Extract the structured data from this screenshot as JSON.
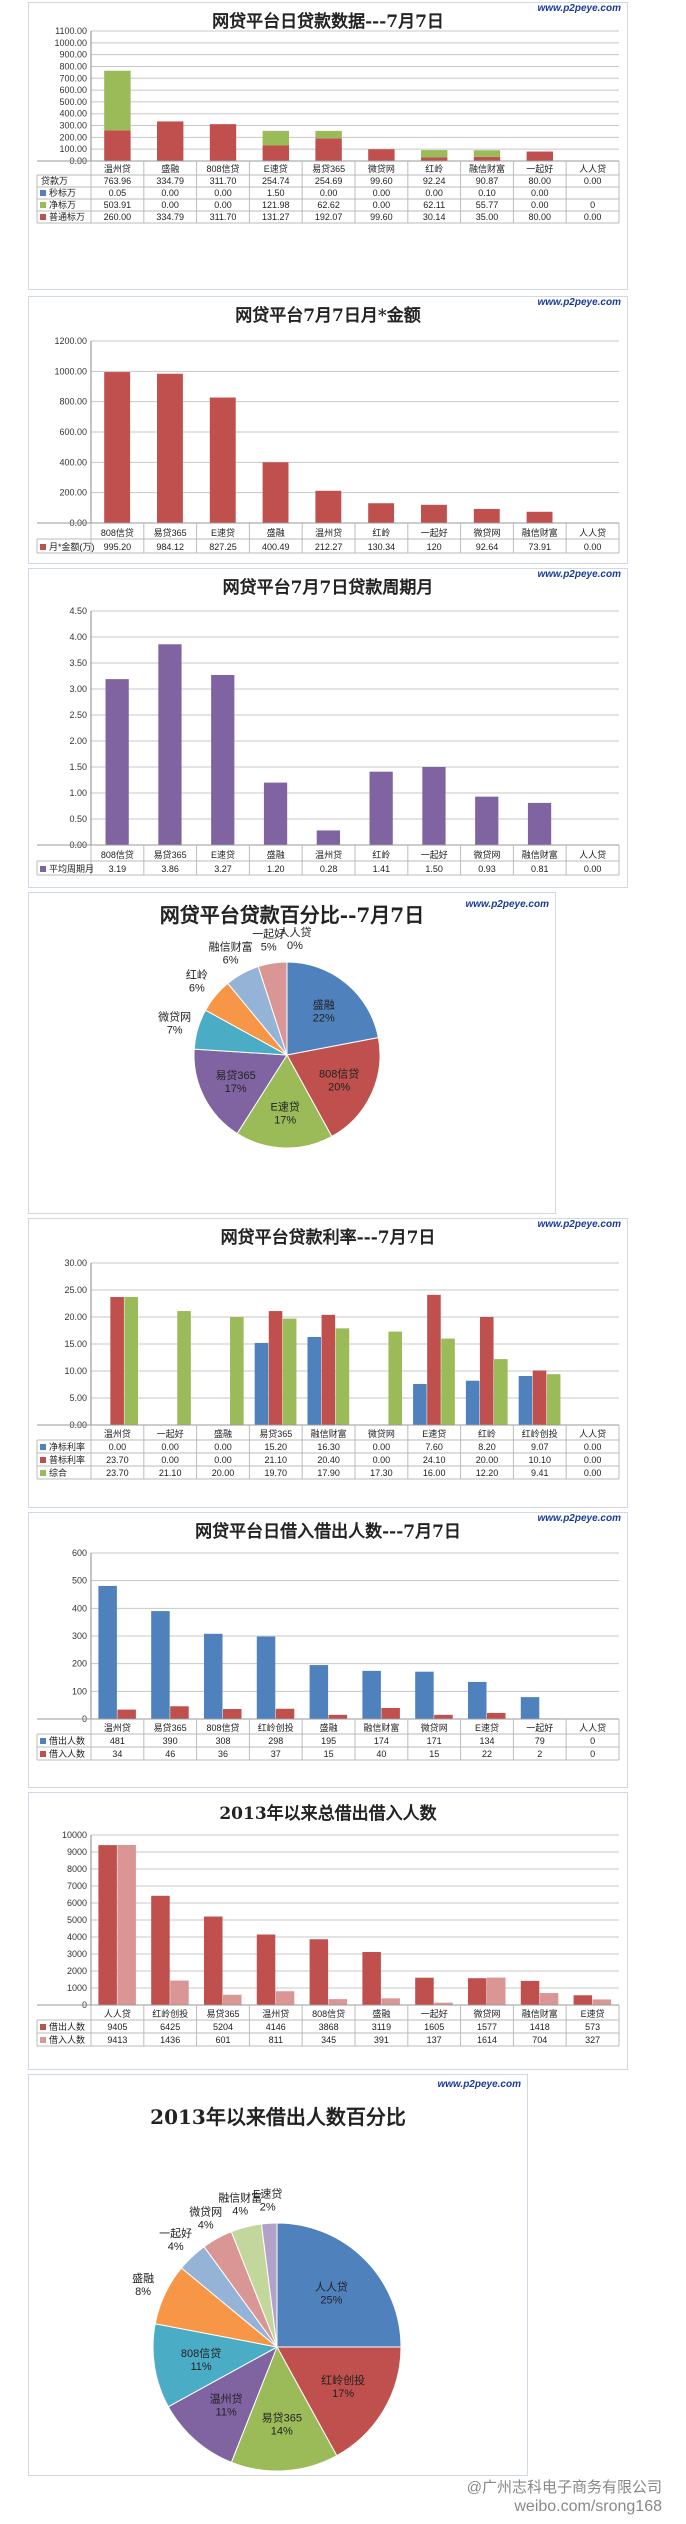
{
  "brand": "www.p2peye.com",
  "footer": {
    "line1": "@广州志科电子商务有限公司",
    "line2": "weibo.com/srong168"
  },
  "chart_data": [
    {
      "id": "c1",
      "type": "bar",
      "stacked": true,
      "title": "网贷平台日贷款数据---7月7日",
      "ylim": [
        0,
        1100
      ],
      "yticks": [
        "0.00",
        "100.00",
        "200.00",
        "300.00",
        "400.00",
        "500.00",
        "600.00",
        "700.00",
        "800.00",
        "900.00",
        "1000.00",
        "1100.00"
      ],
      "categories": [
        "温州贷",
        "盛融",
        "808信贷",
        "E速贷",
        "易贷365",
        "微贷网",
        "红岭",
        "融信财富",
        "一起好",
        "人人贷"
      ],
      "table_rows": [
        {
          "name": "贷款万",
          "values": [
            "763.96",
            "334.79",
            "311.70",
            "254.74",
            "254.69",
            "99.60",
            "92.24",
            "90.87",
            "80.00",
            "0.00"
          ]
        }
      ],
      "series": [
        {
          "name": "秒标万",
          "color": "#4f81bd",
          "values": [
            0.05,
            0,
            0,
            1.5,
            0,
            0,
            0,
            0.1,
            0,
            0
          ],
          "labels": [
            "0.05",
            "0.00",
            "0.00",
            "1.50",
            "0.00",
            "0.00",
            "0.00",
            "0.10",
            "0.00",
            ""
          ]
        },
        {
          "name": "净标万",
          "color": "#9bbb59",
          "values": [
            503.91,
            0,
            0,
            121.98,
            62.62,
            0,
            62.11,
            55.77,
            0,
            0
          ],
          "labels": [
            "503.91",
            "0.00",
            "0.00",
            "121.98",
            "62.62",
            "0.00",
            "62.11",
            "55.77",
            "0.00",
            "0"
          ]
        },
        {
          "name": "普通标万",
          "color": "#c0504d",
          "values": [
            260.0,
            334.79,
            311.7,
            131.27,
            192.07,
            99.6,
            30.14,
            35.0,
            80.0,
            0
          ],
          "labels": [
            "260.00",
            "334.79",
            "311.70",
            "131.27",
            "192.07",
            "99.60",
            "30.14",
            "35.00",
            "80.00",
            "0.00"
          ]
        }
      ]
    },
    {
      "id": "c2",
      "type": "bar",
      "title": "网贷平台7月7日月*金额",
      "ylim": [
        0,
        1200
      ],
      "yticks": [
        "0.00",
        "200.00",
        "400.00",
        "600.00",
        "800.00",
        "1000.00",
        "1200.00"
      ],
      "categories": [
        "808信贷",
        "易贷365",
        "E速贷",
        "盛融",
        "温州贷",
        "红岭",
        "一起好",
        "微贷网",
        "融信财富",
        "人人贷"
      ],
      "series": [
        {
          "name": "月*金额(万)",
          "color": "#c0504d",
          "values": [
            995.2,
            984.12,
            827.25,
            400.49,
            212.27,
            130.34,
            120,
            92.64,
            73.91,
            0
          ],
          "labels": [
            "995.20",
            "984.12",
            "827.25",
            "400.49",
            "212.27",
            "130.34",
            "120",
            "92.64",
            "73.91",
            "0.00"
          ]
        }
      ]
    },
    {
      "id": "c3",
      "type": "bar",
      "title": "网贷平台7月7日贷款周期月",
      "ylim": [
        0,
        4.5
      ],
      "yticks": [
        "0.00",
        "0.50",
        "1.00",
        "1.50",
        "2.00",
        "2.50",
        "3.00",
        "3.50",
        "4.00",
        "4.50"
      ],
      "categories": [
        "808信贷",
        "易贷365",
        "E速贷",
        "盛融",
        "温州贷",
        "红岭",
        "一起好",
        "微贷网",
        "融信财富",
        "人人贷"
      ],
      "series": [
        {
          "name": "平均周期月",
          "color": "#8064a2",
          "values": [
            3.19,
            3.86,
            3.27,
            1.2,
            0.28,
            1.41,
            1.5,
            0.93,
            0.81,
            0
          ],
          "labels": [
            "3.19",
            "3.86",
            "3.27",
            "1.20",
            "0.28",
            "1.41",
            "1.50",
            "0.93",
            "0.81",
            "0.00"
          ]
        }
      ]
    },
    {
      "id": "c4",
      "type": "pie",
      "title": "网贷平台贷款百分比--7月7日",
      "slices": [
        {
          "name": "盛融",
          "pct": 22,
          "label": "22%",
          "color": "#4f81bd"
        },
        {
          "name": "808信贷",
          "pct": 20,
          "label": "20%",
          "color": "#c0504d"
        },
        {
          "name": "E速贷",
          "pct": 17,
          "label": "17%",
          "color": "#9bbb59"
        },
        {
          "name": "易贷365",
          "pct": 17,
          "label": "17%",
          "color": "#8064a2"
        },
        {
          "name": "微贷网",
          "pct": 7,
          "label": "7%",
          "color": "#4bacc6"
        },
        {
          "name": "红岭",
          "pct": 6,
          "label": "6%",
          "color": "#f79646"
        },
        {
          "name": "融信财富",
          "pct": 6,
          "label": "6%",
          "color": "#95b3d7"
        },
        {
          "name": "一起好",
          "pct": 5,
          "label": "5%",
          "color": "#d99694"
        },
        {
          "name": "人人贷",
          "pct": 0,
          "label": "0%",
          "color": "#c3d69b"
        }
      ]
    },
    {
      "id": "c5",
      "type": "bar",
      "title": "网贷平台贷款利率---7月7日",
      "ylim": [
        0,
        30
      ],
      "yticks": [
        "0.00",
        "5.00",
        "10.00",
        "15.00",
        "20.00",
        "25.00",
        "30.00"
      ],
      "categories": [
        "温州贷",
        "一起好",
        "盛融",
        "易贷365",
        "融信财富",
        "微贷网",
        "E速贷",
        "红岭",
        "红岭创投",
        "人人贷"
      ],
      "series": [
        {
          "name": "净标利率",
          "color": "#4f81bd",
          "values": [
            0,
            0,
            0,
            15.2,
            16.3,
            0,
            7.6,
            8.2,
            9.07,
            0
          ],
          "labels": [
            "0.00",
            "0.00",
            "0.00",
            "15.20",
            "16.30",
            "0.00",
            "7.60",
            "8.20",
            "9.07",
            "0.00"
          ]
        },
        {
          "name": "普标利率",
          "color": "#c0504d",
          "values": [
            23.7,
            0,
            0,
            21.1,
            20.4,
            0,
            24.1,
            20.0,
            10.1,
            0
          ],
          "labels": [
            "23.70",
            "0.00",
            "0.00",
            "21.10",
            "20.40",
            "0.00",
            "24.10",
            "20.00",
            "10.10",
            "0.00"
          ]
        },
        {
          "name": "综合",
          "color": "#9bbb59",
          "values": [
            23.7,
            21.1,
            20.0,
            19.7,
            17.9,
            17.3,
            16.0,
            12.2,
            9.41,
            0
          ],
          "labels": [
            "23.70",
            "21.10",
            "20.00",
            "19.70",
            "17.90",
            "17.30",
            "16.00",
            "12.20",
            "9.41",
            "0.00"
          ]
        }
      ]
    },
    {
      "id": "c6",
      "type": "bar",
      "title": "网贷平台日借入借出人数---7月7日",
      "ylim": [
        0,
        600
      ],
      "yticks": [
        "0",
        "100",
        "200",
        "300",
        "400",
        "500",
        "600"
      ],
      "categories": [
        "温州贷",
        "易贷365",
        "808信贷",
        "红岭创投",
        "盛融",
        "融信财富",
        "微贷网",
        "E速贷",
        "一起好",
        "人人贷"
      ],
      "series": [
        {
          "name": "借出人数",
          "color": "#4f81bd",
          "values": [
            481,
            390,
            308,
            298,
            195,
            174,
            171,
            134,
            79,
            0
          ],
          "labels": [
            "481",
            "390",
            "308",
            "298",
            "195",
            "174",
            "171",
            "134",
            "79",
            "0"
          ]
        },
        {
          "name": "借入人数",
          "color": "#c0504d",
          "values": [
            34,
            46,
            36,
            37,
            15,
            40,
            15,
            22,
            2,
            0
          ],
          "labels": [
            "34",
            "46",
            "36",
            "37",
            "15",
            "40",
            "15",
            "22",
            "2",
            "0"
          ]
        }
      ]
    },
    {
      "id": "c7",
      "type": "bar",
      "title": "2013年以来总借出借入人数",
      "ylim": [
        0,
        10000
      ],
      "yticks": [
        "0",
        "1000",
        "2000",
        "3000",
        "4000",
        "5000",
        "6000",
        "7000",
        "8000",
        "9000",
        "10000"
      ],
      "categories": [
        "人人贷",
        "红岭创投",
        "易贷365",
        "温州贷",
        "808信贷",
        "盛融",
        "一起好",
        "微贷网",
        "融信财富",
        "E速贷"
      ],
      "series": [
        {
          "name": "借出人数",
          "color": "#c0504d",
          "values": [
            9405,
            6425,
            5204,
            4146,
            3868,
            3119,
            1605,
            1577,
            1418,
            573
          ],
          "labels": [
            "9405",
            "6425",
            "5204",
            "4146",
            "3868",
            "3119",
            "1605",
            "1577",
            "1418",
            "573"
          ]
        },
        {
          "name": "借入人数",
          "color": "#d99694",
          "values": [
            9413,
            1436,
            601,
            811,
            345,
            391,
            137,
            1614,
            704,
            327
          ],
          "labels": [
            "9413",
            "1436",
            "601",
            "811",
            "345",
            "391",
            "137",
            "1614",
            "704",
            "327"
          ]
        }
      ]
    },
    {
      "id": "c8",
      "type": "pie",
      "title": "2013年以来借出人数百分比",
      "slices": [
        {
          "name": "人人贷",
          "pct": 25,
          "label": "25%",
          "color": "#4f81bd"
        },
        {
          "name": "红岭创投",
          "pct": 17,
          "label": "17%",
          "color": "#c0504d"
        },
        {
          "name": "易贷365",
          "pct": 14,
          "label": "14%",
          "color": "#9bbb59"
        },
        {
          "name": "温州贷",
          "pct": 11,
          "label": "11%",
          "color": "#8064a2"
        },
        {
          "name": "808信贷",
          "pct": 11,
          "label": "11%",
          "color": "#4bacc6"
        },
        {
          "name": "盛融",
          "pct": 8,
          "label": "8%",
          "color": "#f79646"
        },
        {
          "name": "一起好",
          "pct": 4,
          "label": "4%",
          "color": "#95b3d7"
        },
        {
          "name": "微贷网",
          "pct": 4,
          "label": "4%",
          "color": "#d99694"
        },
        {
          "name": "融信财富",
          "pct": 4,
          "label": "4%",
          "color": "#c3d69b"
        },
        {
          "name": "E速贷",
          "pct": 2,
          "label": "2%",
          "color": "#b3a2c7"
        }
      ]
    }
  ]
}
